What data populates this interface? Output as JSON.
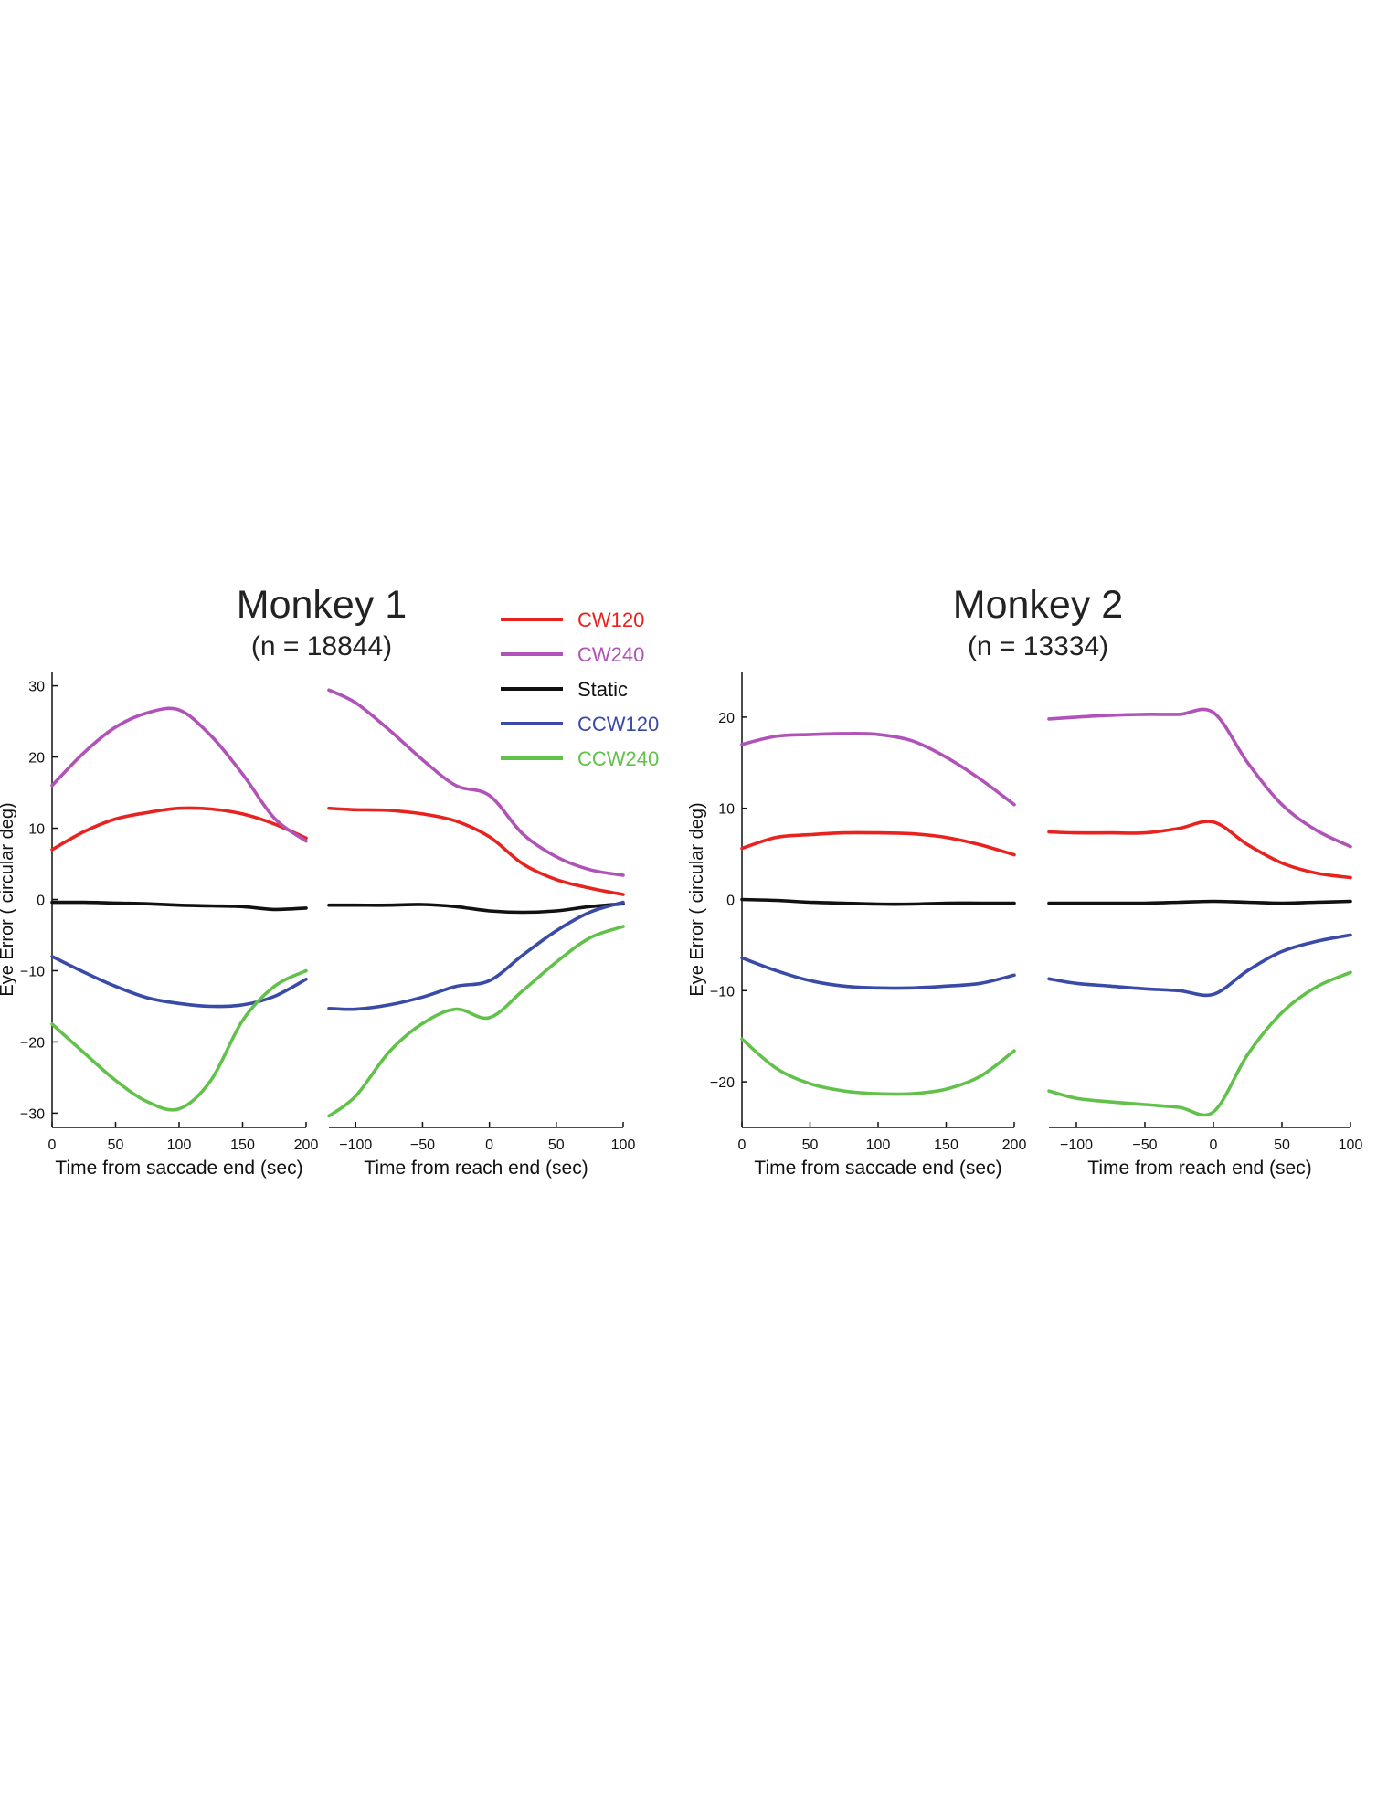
{
  "figure": {
    "monkey1": {
      "title": "Monkey 1",
      "subtitle": "(n = 18844)"
    },
    "monkey2": {
      "title": "Monkey 2",
      "subtitle": "(n = 13334)"
    },
    "legend": [
      {
        "label": "CW120",
        "color": "#e8231f"
      },
      {
        "label": "CW240",
        "color": "#b152b8"
      },
      {
        "label": "Static",
        "color": "#111111"
      },
      {
        "label": "CCW120",
        "color": "#3a4aa8"
      },
      {
        "label": "CCW240",
        "color": "#62c14a"
      }
    ]
  },
  "chart_data": [
    {
      "type": "line",
      "panel": "Monkey 1 - saccade aligned",
      "xlabel": "Time from saccade end (sec)",
      "ylabel": "Eye Error ( circular deg)",
      "xlim": [
        0,
        200
      ],
      "ylim": [
        -32,
        32
      ],
      "xticks": [
        0,
        50,
        100,
        150,
        200
      ],
      "yticks": [
        -30,
        -20,
        -10,
        0,
        10,
        20,
        30
      ],
      "xticklabels": [
        "0",
        "50",
        "100",
        "150",
        "200"
      ],
      "yticklabels": [
        "−30",
        "−20",
        "−10",
        "0",
        "10",
        "20",
        "30"
      ],
      "x": [
        0,
        25,
        50,
        75,
        100,
        125,
        150,
        175,
        200
      ],
      "series": [
        {
          "name": "CW120",
          "values": [
            7,
            9.5,
            11.3,
            12.2,
            12.8,
            12.7,
            12.0,
            10.6,
            8.6
          ]
        },
        {
          "name": "CW240",
          "values": [
            16,
            20.6,
            24.2,
            26.2,
            26.6,
            23.0,
            17.6,
            11.4,
            8.2
          ]
        },
        {
          "name": "Static",
          "values": [
            -0.4,
            -0.4,
            -0.5,
            -0.6,
            -0.8,
            -0.9,
            -1.0,
            -1.4,
            -1.2
          ]
        },
        {
          "name": "CCW120",
          "values": [
            -8,
            -10.2,
            -12.2,
            -13.8,
            -14.6,
            -15.0,
            -14.8,
            -13.6,
            -11.2
          ]
        },
        {
          "name": "CCW240",
          "values": [
            -17.5,
            -21.5,
            -25.4,
            -28.4,
            -29.4,
            -25.4,
            -17.0,
            -12.2,
            -10.0
          ]
        }
      ]
    },
    {
      "type": "line",
      "panel": "Monkey 1 - reach aligned",
      "xlabel": "Time from reach end (sec)",
      "ylabel": "",
      "xlim": [
        -120,
        100
      ],
      "ylim": [
        -32,
        32
      ],
      "xticks": [
        -100,
        -50,
        0,
        50,
        100
      ],
      "xticklabels": [
        "−100",
        "−50",
        "0",
        "50",
        "100"
      ],
      "x": [
        -120,
        -100,
        -75,
        -50,
        -25,
        0,
        25,
        50,
        75,
        100
      ],
      "series": [
        {
          "name": "CW120",
          "values": [
            12.8,
            12.6,
            12.5,
            12.0,
            11.0,
            8.8,
            5.0,
            2.8,
            1.6,
            0.7
          ]
        },
        {
          "name": "CW240",
          "values": [
            29.4,
            27.6,
            23.8,
            19.6,
            16.0,
            14.6,
            9.2,
            6.0,
            4.2,
            3.4
          ]
        },
        {
          "name": "Static",
          "values": [
            -0.8,
            -0.8,
            -0.8,
            -0.7,
            -1.0,
            -1.6,
            -1.8,
            -1.6,
            -1.0,
            -0.6
          ]
        },
        {
          "name": "CCW120",
          "values": [
            -15.3,
            -15.4,
            -14.8,
            -13.7,
            -12.2,
            -11.4,
            -7.8,
            -4.4,
            -1.8,
            -0.4
          ]
        },
        {
          "name": "CCW240",
          "values": [
            -30.4,
            -27.6,
            -21.4,
            -17.4,
            -15.4,
            -16.6,
            -12.8,
            -8.8,
            -5.4,
            -3.8
          ]
        }
      ]
    },
    {
      "type": "line",
      "panel": "Monkey 2 - saccade aligned",
      "xlabel": "Time from saccade end (sec)",
      "ylabel": "Eye Error ( circular deg)",
      "xlim": [
        0,
        200
      ],
      "ylim": [
        -25,
        25
      ],
      "xticks": [
        0,
        50,
        100,
        150,
        200
      ],
      "yticks": [
        -20,
        -10,
        0,
        10,
        20
      ],
      "xticklabels": [
        "0",
        "50",
        "100",
        "150",
        "200"
      ],
      "yticklabels": [
        "−20",
        "−10",
        "0",
        "10",
        "20"
      ],
      "x": [
        0,
        25,
        50,
        75,
        100,
        125,
        150,
        175,
        200
      ],
      "series": [
        {
          "name": "CW120",
          "values": [
            5.6,
            6.8,
            7.1,
            7.3,
            7.3,
            7.2,
            6.8,
            6.0,
            4.9
          ]
        },
        {
          "name": "CW240",
          "values": [
            17.0,
            17.9,
            18.1,
            18.2,
            18.1,
            17.4,
            15.6,
            13.2,
            10.4
          ]
        },
        {
          "name": "Static",
          "values": [
            0.0,
            -0.1,
            -0.3,
            -0.4,
            -0.5,
            -0.5,
            -0.4,
            -0.4,
            -0.4
          ]
        },
        {
          "name": "CCW120",
          "values": [
            -6.4,
            -7.8,
            -8.9,
            -9.5,
            -9.7,
            -9.7,
            -9.5,
            -9.2,
            -8.3
          ]
        },
        {
          "name": "CCW240",
          "values": [
            -15.3,
            -18.5,
            -20.2,
            -21.0,
            -21.3,
            -21.3,
            -20.8,
            -19.4,
            -16.6
          ]
        }
      ]
    },
    {
      "type": "line",
      "panel": "Monkey 2 - reach aligned",
      "xlabel": "Time from reach end (sec)",
      "ylabel": "",
      "xlim": [
        -120,
        100
      ],
      "ylim": [
        -25,
        25
      ],
      "xticks": [
        -100,
        -50,
        0,
        50,
        100
      ],
      "xticklabels": [
        "−100",
        "−50",
        "0",
        "50",
        "100"
      ],
      "x": [
        -120,
        -100,
        -75,
        -50,
        -25,
        0,
        25,
        50,
        75,
        100
      ],
      "series": [
        {
          "name": "CW120",
          "values": [
            7.4,
            7.3,
            7.3,
            7.3,
            7.8,
            8.5,
            6.0,
            4.0,
            2.9,
            2.4
          ]
        },
        {
          "name": "CW240",
          "values": [
            19.8,
            20.0,
            20.2,
            20.3,
            20.3,
            20.5,
            15.0,
            10.4,
            7.6,
            5.8
          ]
        },
        {
          "name": "Static",
          "values": [
            -0.4,
            -0.4,
            -0.4,
            -0.4,
            -0.3,
            -0.2,
            -0.3,
            -0.4,
            -0.3,
            -0.2
          ]
        },
        {
          "name": "CCW120",
          "values": [
            -8.7,
            -9.2,
            -9.5,
            -9.8,
            -10.0,
            -10.4,
            -7.8,
            -5.7,
            -4.6,
            -3.9
          ]
        },
        {
          "name": "CCW240",
          "values": [
            -21.0,
            -21.8,
            -22.2,
            -22.5,
            -22.8,
            -23.3,
            -17.0,
            -12.4,
            -9.6,
            -8.0
          ]
        }
      ]
    }
  ]
}
